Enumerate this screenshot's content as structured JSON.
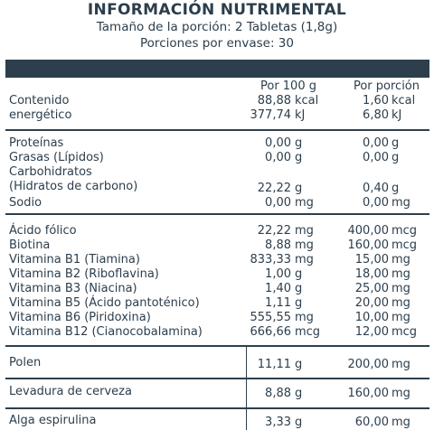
{
  "header": {
    "title": "INFORMACIÓN NUTRIMENTAL",
    "serving_size": "Tamaño de la porción: 2 Tabletas (1,8g)",
    "servings": "Porciones por envase: 30"
  },
  "columns": {
    "per100": "Por 100 g",
    "perServing": "Por porción"
  },
  "energy": {
    "label_line1": "Contenido",
    "label_line2": "energético",
    "kcal": {
      "v100": "88,88",
      "vPor": "1,60",
      "unit": "kcal"
    },
    "kj": {
      "v100": "377,74",
      "vPor": "6,80",
      "unit": "kJ"
    }
  },
  "macros": [
    {
      "label": "Proteínas",
      "v100": "0,00",
      "u100": "g",
      "vPor": "0,00",
      "uPor": "g"
    },
    {
      "label": "Grasas (Lípidos)",
      "v100": "0,00",
      "u100": "g",
      "vPor": "0,00",
      "uPor": "g"
    },
    {
      "label": "Carbohidratos",
      "label2": "(Hidratos de carbono)",
      "v100": "22,22",
      "u100": "g",
      "vPor": "0,40",
      "uPor": "g"
    },
    {
      "label": "Sodio",
      "v100": "0,00",
      "u100": "mg",
      "vPor": "0,00",
      "uPor": "mg"
    }
  ],
  "vitamins": [
    {
      "label": "Ácido fólico",
      "v100": "22,22",
      "u100": "mg",
      "vPor": "400,00",
      "uPor": "mcg"
    },
    {
      "label": "Biotina",
      "v100": "8,88",
      "u100": "mg",
      "vPor": "160,00",
      "uPor": "mcg"
    },
    {
      "label": "Vitamina B1 (Tiamina)",
      "v100": "833,33",
      "u100": "mg",
      "vPor": "15,00",
      "uPor": "mg"
    },
    {
      "label": "Vitamina B2 (Riboflavina)",
      "v100": "1,00",
      "u100": "g",
      "vPor": "18,00",
      "uPor": "mg"
    },
    {
      "label": "Vitamina B3 (Niacina)",
      "v100": "1,40",
      "u100": "g",
      "vPor": "25,00",
      "uPor": "mg"
    },
    {
      "label": "Vitamina B5 (Ácido pantoténico)",
      "v100": "1,11",
      "u100": "g",
      "vPor": "20,00",
      "uPor": "mg"
    },
    {
      "label": "Vitamina B6 (Piridoxina)",
      "v100": "555,55",
      "u100": "mg",
      "vPor": "10,00",
      "uPor": "mg"
    },
    {
      "label": "Vitamina B12 (Cianocobalamina)",
      "v100": "666,66",
      "u100": "mcg",
      "vPor": "12,00",
      "uPor": "mcg"
    }
  ],
  "extras": [
    {
      "label": "Polen",
      "v100": "11,11",
      "u100": "g",
      "vPor": "200,00",
      "uPor": "mg"
    },
    {
      "label": "Levadura de cerveza",
      "v100": "8,88",
      "u100": "g",
      "vPor": "160,00",
      "uPor": "mg"
    },
    {
      "label": "Alga espirulina",
      "v100": "3,33",
      "u100": "g",
      "vPor": "60,00",
      "uPor": "mg"
    }
  ]
}
